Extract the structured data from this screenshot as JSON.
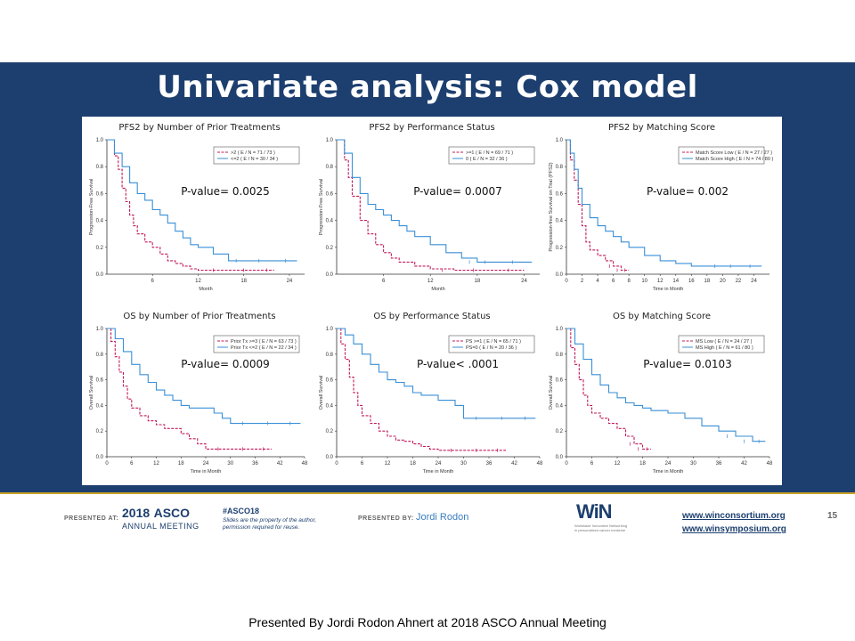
{
  "slide": {
    "title": "Univariate analysis: Cox model",
    "page_number": "15",
    "caption": "Presented By Jordi Rodon Ahnert at 2018 ASCO Annual Meeting"
  },
  "footer": {
    "presented_at_label": "PRESENTED AT:",
    "asco_year": "2018",
    "asco_word": "ASCO",
    "asco_sub": "ANNUAL MEETING",
    "hashtag": "#ASCO18",
    "slides_note_1": "Slides are the property of the author,",
    "slides_note_2": "permission required for reuse.",
    "presented_by_label": "PRESENTED BY:",
    "presenter": "Jordi Rodon",
    "win_logo": "WiN",
    "win_sub_1": "Worldwide Innovative Networking",
    "win_sub_2": "in personalized cancer medicine",
    "url_1": "www.winconsortium.org",
    "url_2": "www.winsymposium.org"
  },
  "colors": {
    "band": "#1d3f6f",
    "series_red": "#c2185b",
    "series_blue": "#3a8fd6",
    "accent_line": "#c9a227"
  },
  "chart_data": [
    {
      "type": "line",
      "title": "PFS2 by Number of Prior Treatments",
      "annotation": "P-value= 0.0025",
      "xlabel": "Month",
      "ylabel": "Progression-Free Survival",
      "xlim": [
        0,
        26
      ],
      "ylim": [
        0,
        1
      ],
      "xticks": [
        "6",
        "12",
        "18",
        "24"
      ],
      "xtick_values": [
        6,
        12,
        18,
        24
      ],
      "yticks": [
        "0.0",
        "0.2",
        "0.4",
        "0.6",
        "0.8",
        "1.0"
      ],
      "ytick_values": [
        0,
        0.2,
        0.4,
        0.6,
        0.8,
        1.0
      ],
      "legend_position": "top-right",
      "series": [
        {
          "name": ">2  ( E / N = 71 / 73 )",
          "dash": true,
          "x": [
            0,
            1,
            1.5,
            2,
            2.5,
            3,
            3.5,
            4,
            5,
            6,
            7,
            8,
            9,
            10,
            11,
            12,
            16,
            20,
            22
          ],
          "y": [
            1.0,
            0.88,
            0.78,
            0.64,
            0.54,
            0.44,
            0.36,
            0.3,
            0.24,
            0.2,
            0.15,
            0.1,
            0.08,
            0.06,
            0.04,
            0.03,
            0.03,
            0.03,
            0.03
          ]
        },
        {
          "name": "<=2  ( E / N = 30 / 34 )",
          "dash": false,
          "x": [
            0,
            1,
            2,
            3,
            4,
            5,
            6,
            7,
            8,
            9,
            10,
            11,
            12,
            14,
            16,
            18,
            22,
            25
          ],
          "y": [
            1.0,
            0.9,
            0.8,
            0.68,
            0.6,
            0.55,
            0.48,
            0.44,
            0.38,
            0.32,
            0.27,
            0.22,
            0.2,
            0.15,
            0.1,
            0.1,
            0.1,
            0.1
          ]
        }
      ]
    },
    {
      "type": "line",
      "title": "PFS2 by Performance Status",
      "annotation": "P-value= 0.0007",
      "xlabel": "Month",
      "ylabel": "Progression-Free Survival",
      "xlim": [
        0,
        26
      ],
      "ylim": [
        0,
        1
      ],
      "xticks": [
        "6",
        "12",
        "18",
        "24"
      ],
      "xtick_values": [
        6,
        12,
        18,
        24
      ],
      "yticks": [
        "0.0",
        "0.2",
        "0.4",
        "0.6",
        "0.8",
        "1.0"
      ],
      "ytick_values": [
        0,
        0.2,
        0.4,
        0.6,
        0.8,
        1.0
      ],
      "legend_position": "top-right",
      "series": [
        {
          "name": ">=1  ( E / N = 69 / 71 )",
          "dash": true,
          "x": [
            0,
            1,
            1.5,
            2,
            3,
            4,
            5,
            6,
            7,
            8,
            10,
            12,
            15,
            20,
            24
          ],
          "y": [
            1.0,
            0.85,
            0.72,
            0.58,
            0.4,
            0.3,
            0.22,
            0.16,
            0.12,
            0.09,
            0.06,
            0.04,
            0.03,
            0.03,
            0.03
          ]
        },
        {
          "name": "0  ( E / N = 32 / 36 )",
          "dash": false,
          "x": [
            0,
            1,
            2,
            3,
            4,
            5,
            6,
            7,
            8,
            9,
            10,
            12,
            14,
            16,
            18,
            20,
            25
          ],
          "y": [
            1.0,
            0.9,
            0.72,
            0.6,
            0.52,
            0.48,
            0.44,
            0.4,
            0.36,
            0.32,
            0.28,
            0.22,
            0.16,
            0.12,
            0.09,
            0.09,
            0.09
          ]
        }
      ]
    },
    {
      "type": "line",
      "title": "PFS2 by Matching Score",
      "annotation": "P-value= 0.002",
      "xlabel": "Time in Month",
      "ylabel": "Progression-free Survival on Trial (PFS2)",
      "xlim": [
        0,
        26
      ],
      "ylim": [
        0,
        1
      ],
      "xticks": [
        "0",
        "2",
        "4",
        "6",
        "8",
        "10",
        "12",
        "14",
        "16",
        "18",
        "20",
        "22",
        "24"
      ],
      "xtick_values": [
        0,
        2,
        4,
        6,
        8,
        10,
        12,
        14,
        16,
        18,
        20,
        22,
        24
      ],
      "yticks": [
        "0.0",
        "0.2",
        "0.4",
        "0.6",
        "0.8",
        "1.0"
      ],
      "ytick_values": [
        0,
        0.2,
        0.4,
        0.6,
        0.8,
        1.0
      ],
      "legend_position": "top-right",
      "series": [
        {
          "name": "Match Score Low  ( E / N = 27 / 27 )",
          "dash": true,
          "x": [
            0,
            0.5,
            1,
            1.5,
            2,
            2.5,
            3,
            4,
            5,
            6,
            7,
            8
          ],
          "y": [
            1.0,
            0.85,
            0.7,
            0.52,
            0.36,
            0.24,
            0.18,
            0.14,
            0.1,
            0.06,
            0.03,
            0.03
          ]
        },
        {
          "name": "Match Score High  ( E / N = 74 / 80 )",
          "dash": false,
          "x": [
            0,
            0.5,
            1,
            1.5,
            2,
            3,
            4,
            5,
            6,
            7,
            8,
            10,
            12,
            14,
            16,
            18,
            20,
            22,
            25
          ],
          "y": [
            1.0,
            0.9,
            0.78,
            0.64,
            0.52,
            0.42,
            0.36,
            0.32,
            0.28,
            0.24,
            0.2,
            0.14,
            0.1,
            0.08,
            0.06,
            0.06,
            0.06,
            0.06,
            0.06
          ]
        }
      ]
    },
    {
      "type": "line",
      "title": "OS by Number of Prior Treatments",
      "annotation": "P-value= 0.0009",
      "xlabel": "Time in Month",
      "ylabel": "Overall Survival",
      "xlim": [
        0,
        48
      ],
      "ylim": [
        0,
        1
      ],
      "xticks": [
        "0",
        "6",
        "12",
        "18",
        "24",
        "30",
        "36",
        "42",
        "48"
      ],
      "xtick_values": [
        0,
        6,
        12,
        18,
        24,
        30,
        36,
        42,
        48
      ],
      "yticks": [
        "0.0",
        "0.2",
        "0.4",
        "0.6",
        "0.8",
        "1.0"
      ],
      "ytick_values": [
        0,
        0.2,
        0.4,
        0.6,
        0.8,
        1.0
      ],
      "legend_position": "top-right",
      "series": [
        {
          "name": "Prior Tx >=3  ( E / N = 63 / 73 )",
          "dash": true,
          "x": [
            0,
            1,
            2,
            3,
            4,
            5,
            6,
            8,
            10,
            12,
            14,
            18,
            20,
            22,
            24,
            30,
            36,
            40
          ],
          "y": [
            1.0,
            0.9,
            0.78,
            0.66,
            0.55,
            0.45,
            0.38,
            0.32,
            0.28,
            0.25,
            0.22,
            0.18,
            0.14,
            0.1,
            0.06,
            0.06,
            0.06,
            0.06
          ]
        },
        {
          "name": "Prior Tx <=2  ( E / N = 22 / 34 )",
          "dash": false,
          "x": [
            0,
            2,
            4,
            6,
            8,
            10,
            12,
            14,
            16,
            18,
            20,
            24,
            26,
            28,
            30,
            36,
            42,
            47
          ],
          "y": [
            1.0,
            0.92,
            0.82,
            0.72,
            0.64,
            0.58,
            0.52,
            0.48,
            0.44,
            0.4,
            0.38,
            0.38,
            0.34,
            0.3,
            0.26,
            0.26,
            0.26,
            0.26
          ]
        }
      ]
    },
    {
      "type": "line",
      "title": "OS by Performance Status",
      "annotation": "P-value< .0001",
      "xlabel": "Time in Month",
      "ylabel": "Overall Survival",
      "xlim": [
        0,
        48
      ],
      "ylim": [
        0,
        1
      ],
      "xticks": [
        "0",
        "6",
        "12",
        "18",
        "24",
        "30",
        "36",
        "42",
        "48"
      ],
      "xtick_values": [
        0,
        6,
        12,
        18,
        24,
        30,
        36,
        42,
        48
      ],
      "yticks": [
        "0.0",
        "0.2",
        "0.4",
        "0.6",
        "0.8",
        "1.0"
      ],
      "ytick_values": [
        0,
        0.2,
        0.4,
        0.6,
        0.8,
        1.0
      ],
      "legend_position": "top-right",
      "series": [
        {
          "name": "PS >=1  ( E / N = 65 / 71 )",
          "dash": true,
          "x": [
            0,
            1,
            2,
            3,
            4,
            5,
            6,
            8,
            10,
            12,
            14,
            16,
            18,
            20,
            22,
            24,
            30,
            36,
            40
          ],
          "y": [
            1.0,
            0.88,
            0.76,
            0.62,
            0.5,
            0.4,
            0.32,
            0.26,
            0.2,
            0.16,
            0.13,
            0.12,
            0.1,
            0.08,
            0.06,
            0.05,
            0.05,
            0.05,
            0.05
          ]
        },
        {
          "name": "PS=0  ( E / N = 20 / 36 )",
          "dash": false,
          "x": [
            0,
            2,
            4,
            6,
            8,
            10,
            12,
            14,
            16,
            18,
            20,
            24,
            28,
            30,
            36,
            42,
            47
          ],
          "y": [
            1.0,
            0.95,
            0.88,
            0.8,
            0.72,
            0.66,
            0.6,
            0.58,
            0.55,
            0.5,
            0.48,
            0.44,
            0.4,
            0.3,
            0.3,
            0.3,
            0.3
          ]
        }
      ]
    },
    {
      "type": "line",
      "title": "OS by Matching Score",
      "annotation": "P-value= 0.0103",
      "xlabel": "Time in Month",
      "ylabel": "Overall Survival",
      "xlim": [
        0,
        48
      ],
      "ylim": [
        0,
        1
      ],
      "xticks": [
        "0",
        "6",
        "12",
        "18",
        "24",
        "30",
        "36",
        "42",
        "48"
      ],
      "xtick_values": [
        0,
        6,
        12,
        18,
        24,
        30,
        36,
        42,
        48
      ],
      "yticks": [
        "0.0",
        "0.2",
        "0.4",
        "0.6",
        "0.8",
        "1.0"
      ],
      "ytick_values": [
        0,
        0.2,
        0.4,
        0.6,
        0.8,
        1.0
      ],
      "legend_position": "top-right",
      "series": [
        {
          "name": "MS Low  ( E / N = 24 / 27 )",
          "dash": true,
          "x": [
            0,
            1,
            2,
            3,
            4,
            5,
            6,
            8,
            10,
            12,
            14,
            16,
            18,
            20
          ],
          "y": [
            1.0,
            0.85,
            0.72,
            0.6,
            0.48,
            0.4,
            0.34,
            0.3,
            0.26,
            0.22,
            0.16,
            0.1,
            0.06,
            0.06
          ]
        },
        {
          "name": "MS High  ( E / N = 61 / 80 )",
          "dash": false,
          "x": [
            0,
            2,
            4,
            6,
            8,
            10,
            12,
            14,
            16,
            18,
            20,
            24,
            28,
            32,
            36,
            40,
            44,
            47
          ],
          "y": [
            1.0,
            0.88,
            0.76,
            0.64,
            0.56,
            0.5,
            0.46,
            0.42,
            0.4,
            0.38,
            0.36,
            0.34,
            0.3,
            0.24,
            0.2,
            0.16,
            0.12,
            0.12
          ]
        }
      ]
    }
  ]
}
